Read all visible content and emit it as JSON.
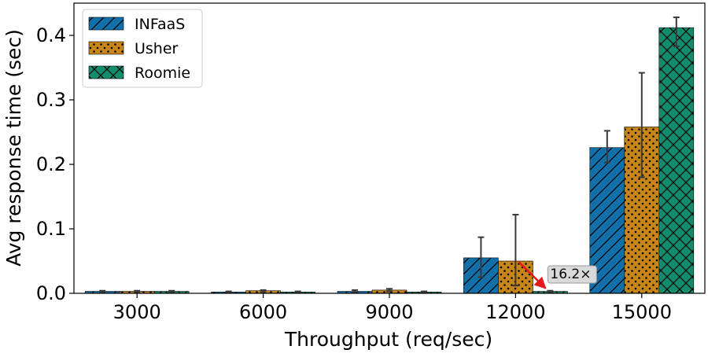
{
  "chart_data": {
    "type": "bar",
    "title": "",
    "xlabel": "Throughput (req/sec)",
    "ylabel": "Avg response time (sec)",
    "categories": [
      "3000",
      "6000",
      "9000",
      "12000",
      "15000"
    ],
    "ylim": [
      0,
      0.45
    ],
    "yticks": [
      "0.0",
      "0.1",
      "0.2",
      "0.3",
      "0.4"
    ],
    "grid": false,
    "legend_position": "top-left",
    "series": [
      {
        "name": "INFaaS",
        "color": "#1170aa",
        "pattern": "diagonal-hatch",
        "values": [
          0.003,
          0.002,
          0.003,
          0.055,
          0.226
        ],
        "err_low": [
          0.002,
          0.001,
          0.002,
          0.025,
          0.203
        ],
        "err_high": [
          0.004,
          0.003,
          0.005,
          0.087,
          0.252
        ]
      },
      {
        "name": "Usher",
        "color": "#c8861a",
        "pattern": "dots",
        "values": [
          0.003,
          0.004,
          0.005,
          0.05,
          0.258
        ],
        "err_low": [
          0.002,
          0.002,
          0.003,
          0.012,
          0.18
        ],
        "err_high": [
          0.004,
          0.005,
          0.007,
          0.122,
          0.342
        ]
      },
      {
        "name": "Roomie",
        "color": "#138d6c",
        "pattern": "crosshatch",
        "values": [
          0.003,
          0.002,
          0.002,
          0.003,
          0.412
        ],
        "err_low": [
          0.002,
          0.001,
          0.001,
          0.002,
          0.383
        ],
        "err_high": [
          0.004,
          0.003,
          0.003,
          0.004,
          0.428
        ]
      }
    ],
    "annotation": {
      "text": "16.2×",
      "arrow_color": "#e31a1c",
      "from": {
        "category": "12000",
        "series": "Usher",
        "value": 0.05
      },
      "to": {
        "category": "12000",
        "series": "Roomie",
        "value": 0.003
      }
    }
  }
}
